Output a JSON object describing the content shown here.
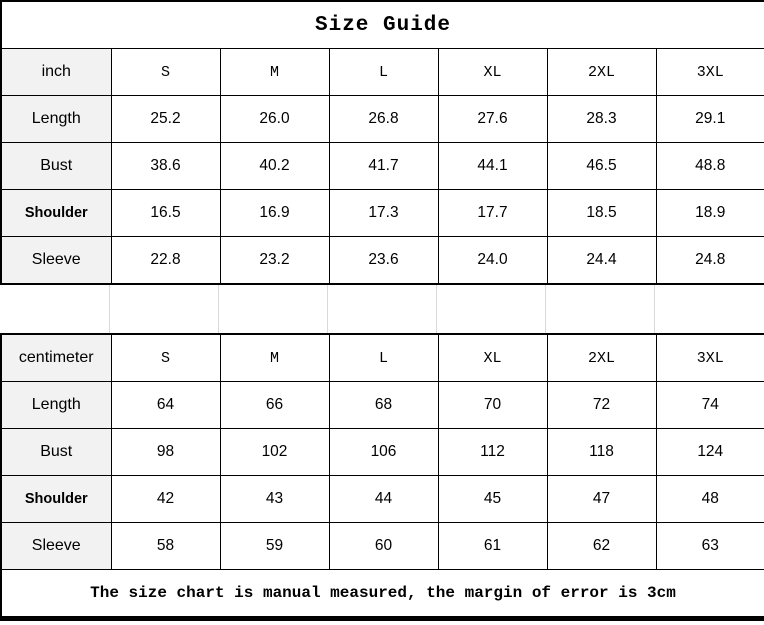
{
  "title": "Size Guide",
  "chart_data": {
    "type": "table",
    "title": "Size Guide",
    "sizes": [
      "S",
      "M",
      "L",
      "XL",
      "2XL",
      "3XL"
    ],
    "sections": [
      {
        "unit_label": "inch",
        "rows": [
          {
            "label": "Length",
            "bold": false,
            "values": [
              "25.2",
              "26.0",
              "26.8",
              "27.6",
              "28.3",
              "29.1"
            ]
          },
          {
            "label": "Bust",
            "bold": false,
            "values": [
              "38.6",
              "40.2",
              "41.7",
              "44.1",
              "46.5",
              "48.8"
            ]
          },
          {
            "label": "Shoulder",
            "bold": true,
            "values": [
              "16.5",
              "16.9",
              "17.3",
              "17.7",
              "18.5",
              "18.9"
            ]
          },
          {
            "label": "Sleeve",
            "bold": false,
            "values": [
              "22.8",
              "23.2",
              "23.6",
              "24.0",
              "24.4",
              "24.8"
            ]
          }
        ]
      },
      {
        "unit_label": "centimeter",
        "rows": [
          {
            "label": "Length",
            "bold": false,
            "values": [
              "64",
              "66",
              "68",
              "70",
              "72",
              "74"
            ]
          },
          {
            "label": "Bust",
            "bold": false,
            "values": [
              "98",
              "102",
              "106",
              "112",
              "118",
              "124"
            ]
          },
          {
            "label": "Shoulder",
            "bold": true,
            "values": [
              "42",
              "43",
              "44",
              "45",
              "47",
              "48"
            ]
          },
          {
            "label": "Sleeve",
            "bold": false,
            "values": [
              "58",
              "59",
              "60",
              "61",
              "62",
              "63"
            ]
          }
        ]
      }
    ],
    "footnote": "The size chart is manual measured, the margin of error is 3cm"
  },
  "colors": {
    "border": "#000000",
    "label_cell_bg": "#f2f2f2",
    "cell_bg": "#ffffff",
    "spacer_gridline": "#d9d9d9",
    "text": "#000000"
  }
}
